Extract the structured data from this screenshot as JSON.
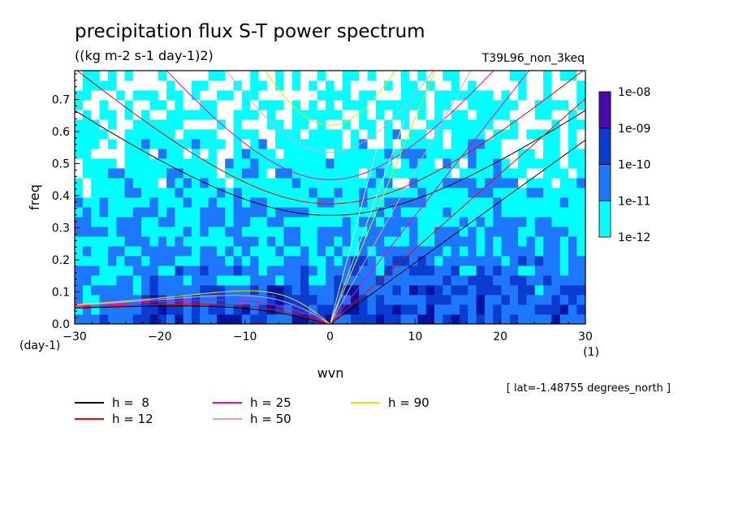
{
  "chart_data": {
    "type": "heatmap",
    "title": "precipitation flux S-T power spectrum",
    "subtitle": "((kg m-2 s-1 day-1)2)",
    "run_label": "T39L96_non_3keq",
    "xlabel": "wvn",
    "ylabel": "freq",
    "x_unit": "(1)",
    "y_unit": "(day-1)",
    "xlim": [
      -30,
      30
    ],
    "ylim": [
      0,
      0.79
    ],
    "xticks": [
      "-30",
      "-20",
      "-10",
      "0",
      "10",
      "20",
      "30"
    ],
    "yticks": [
      "0.0",
      "0.1",
      "0.2",
      "0.3",
      "0.4",
      "0.5",
      "0.6",
      "0.7"
    ],
    "grid": false,
    "colorbar": {
      "labels": [
        "1e-12",
        "1e-11",
        "1e-10",
        "1e-09",
        "1e-08"
      ],
      "colors": [
        "#00ffff",
        "#1e78ff",
        "#0a3cd2",
        "#0014a0",
        "#4b0aaa"
      ]
    },
    "location_note": "[ lat=-1.48755 degrees_north ]",
    "legend_position": "bottom-left",
    "dispersion_curves": [
      {
        "name": "h =  8",
        "h": 8,
        "color": "#000000"
      },
      {
        "name": "h = 12",
        "h": 12,
        "color": "#ff0000"
      },
      {
        "name": "h = 25",
        "h": 25,
        "color": "#ff00aa"
      },
      {
        "name": "h = 50",
        "h": 50,
        "color": "#e0a0e8"
      },
      {
        "name": "h = 90",
        "h": 90,
        "color": "#e8e800"
      }
    ]
  }
}
